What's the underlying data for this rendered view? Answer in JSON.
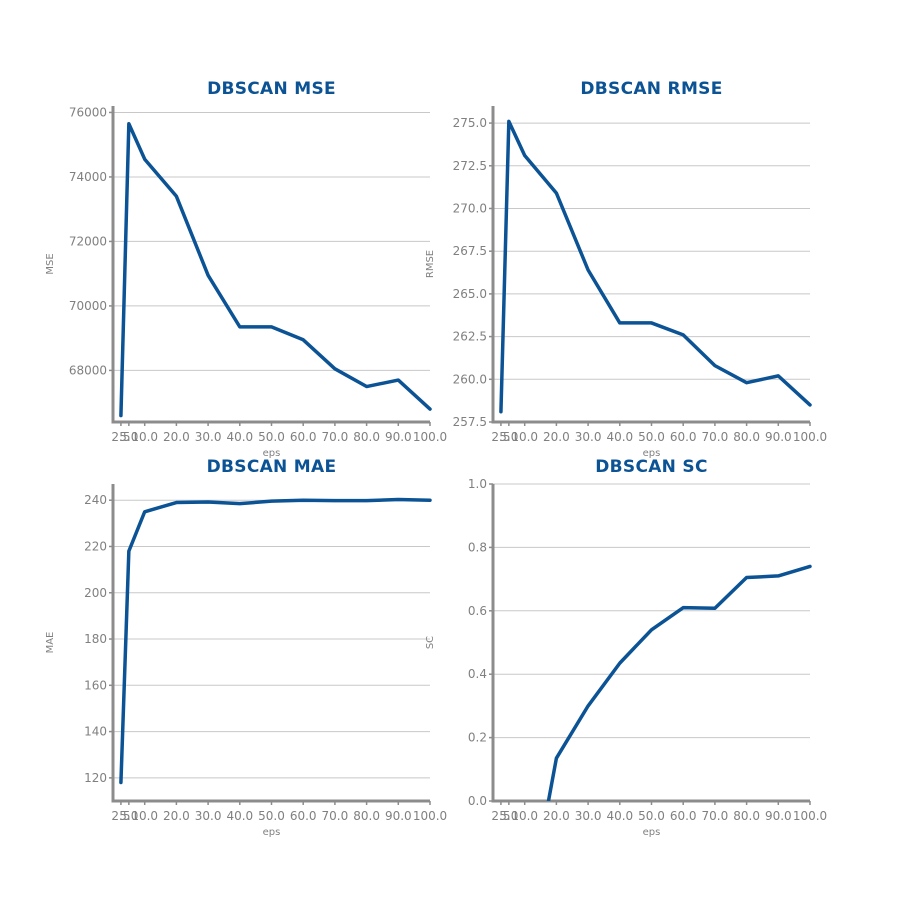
{
  "chart_data": [
    {
      "type": "line",
      "title": "DBSCAN MSE",
      "xlabel": "eps",
      "ylabel": "MSE",
      "x": [
        2.5,
        5.0,
        10.0,
        20.0,
        30.0,
        40.0,
        50.0,
        60.0,
        70.0,
        80.0,
        90.0,
        100.0
      ],
      "x_tick_labels": [
        "2.5",
        "5.0",
        "10.0",
        "20.0",
        "30.0",
        "40.0",
        "50.0",
        "60.0",
        "70.0",
        "80.0",
        "90.0",
        "100.0"
      ],
      "y_ticks": [
        68000,
        70000,
        72000,
        74000,
        76000
      ],
      "y_tick_labels": [
        "68000",
        "70000",
        "72000",
        "74000",
        "76000"
      ],
      "ylim": [
        66400,
        76200
      ],
      "series": [
        {
          "name": "",
          "values": [
            66600,
            75650,
            74550,
            73400,
            70950,
            69350,
            69350,
            68950,
            68050,
            67500,
            67700,
            66800
          ]
        }
      ],
      "grid": true,
      "color": "#0b5394"
    },
    {
      "type": "line",
      "title": "DBSCAN RMSE",
      "xlabel": "eps",
      "ylabel": "RMSE",
      "x": [
        2.5,
        5.0,
        10.0,
        20.0,
        30.0,
        40.0,
        50.0,
        60.0,
        70.0,
        80.0,
        90.0,
        100.0
      ],
      "x_tick_labels": [
        "2.5",
        "5.0",
        "10.0",
        "20.0",
        "30.0",
        "40.0",
        "50.0",
        "60.0",
        "70.0",
        "80.0",
        "90.0",
        "100.0"
      ],
      "y_ticks": [
        257.5,
        260.0,
        262.5,
        265.0,
        267.5,
        270.0,
        272.5,
        275.0
      ],
      "y_tick_labels": [
        "257.5",
        "260.0",
        "262.5",
        "265.0",
        "267.5",
        "270.0",
        "272.5",
        "275.0"
      ],
      "ylim": [
        257.5,
        276.0
      ],
      "series": [
        {
          "name": "",
          "values": [
            258.1,
            275.1,
            273.1,
            270.9,
            266.4,
            263.3,
            263.3,
            262.6,
            260.8,
            259.8,
            260.2,
            258.5
          ]
        }
      ],
      "grid": true,
      "color": "#0b5394"
    },
    {
      "type": "line",
      "title": "DBSCAN MAE",
      "xlabel": "eps",
      "ylabel": "MAE",
      "x": [
        2.5,
        5.0,
        10.0,
        20.0,
        30.0,
        40.0,
        50.0,
        60.0,
        70.0,
        80.0,
        90.0,
        100.0
      ],
      "x_tick_labels": [
        "2.5",
        "5.0",
        "10.0",
        "20.0",
        "30.0",
        "40.0",
        "50.0",
        "60.0",
        "70.0",
        "80.0",
        "90.0",
        "100.0"
      ],
      "y_ticks": [
        120,
        140,
        160,
        180,
        200,
        220,
        240
      ],
      "y_tick_labels": [
        "120",
        "140",
        "160",
        "180",
        "200",
        "220",
        "240"
      ],
      "ylim": [
        110,
        247
      ],
      "series": [
        {
          "name": "",
          "values": [
            118,
            218,
            235,
            239,
            239.2,
            238.5,
            239.6,
            240,
            239.8,
            239.8,
            240.3,
            240
          ]
        }
      ],
      "grid": true,
      "color": "#0b5394"
    },
    {
      "type": "line",
      "title": "DBSCAN SC",
      "xlabel": "eps",
      "ylabel": "SC",
      "x": [
        2.5,
        5.0,
        10.0,
        17.5,
        20.0,
        30.0,
        40.0,
        50.0,
        60.0,
        70.0,
        80.0,
        90.0,
        100.0
      ],
      "x_tick_labels": [
        "2.5",
        "5.0",
        "10.0",
        "20.0",
        "30.0",
        "40.0",
        "50.0",
        "60.0",
        "70.0",
        "80.0",
        "90.0",
        "100.0"
      ],
      "y_ticks": [
        0.0,
        0.2,
        0.4,
        0.6,
        0.8,
        1.0
      ],
      "y_tick_labels": [
        "0.0",
        "0.2",
        "0.4",
        "0.6",
        "0.8",
        "1.0"
      ],
      "ylim": [
        0.0,
        1.0
      ],
      "series": [
        {
          "name": "",
          "values": [
            null,
            null,
            null,
            0.0,
            0.135,
            0.3,
            0.435,
            0.54,
            0.61,
            0.608,
            0.705,
            0.71,
            0.74
          ]
        }
      ],
      "grid": true,
      "color": "#0b5394"
    }
  ]
}
